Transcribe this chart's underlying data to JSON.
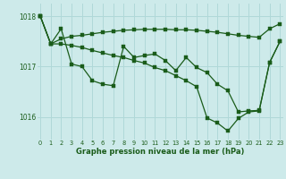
{
  "title": "Graphe pression niveau de la mer (hPa)",
  "background_color": "#cdeaea",
  "grid_color": "#b0d8d8",
  "line_color": "#1a5c1a",
  "x_labels": [
    "0",
    "1",
    "2",
    "3",
    "4",
    "5",
    "6",
    "7",
    "8",
    "9",
    "10",
    "11",
    "12",
    "13",
    "14",
    "15",
    "16",
    "17",
    "18",
    "19",
    "20",
    "21",
    "22",
    "23"
  ],
  "ylim": [
    1015.55,
    1018.25
  ],
  "yticks": [
    1016.0,
    1017.0,
    1018.0
  ],
  "series": {
    "line_smooth": [
      1018.0,
      1017.45,
      1017.55,
      1017.6,
      1017.62,
      1017.65,
      1017.68,
      1017.7,
      1017.72,
      1017.73,
      1017.74,
      1017.74,
      1017.74,
      1017.73,
      1017.73,
      1017.72,
      1017.7,
      1017.68,
      1017.65,
      1017.62,
      1017.6,
      1017.58,
      1017.75,
      1017.85
    ],
    "line_zigzag": [
      1018.0,
      1017.45,
      1017.75,
      1017.05,
      1017.0,
      1016.72,
      1016.65,
      1016.62,
      1017.4,
      1017.18,
      1017.22,
      1017.25,
      1017.12,
      1016.92,
      1017.18,
      1016.98,
      1016.88,
      1016.65,
      1016.52,
      1016.1,
      1016.12,
      1016.13,
      1017.08,
      1017.5
    ],
    "line_down": [
      1018.0,
      1017.45,
      1017.45,
      1017.42,
      1017.38,
      1017.32,
      1017.27,
      1017.22,
      1017.18,
      1017.12,
      1017.07,
      1016.98,
      1016.92,
      1016.82,
      1016.72,
      1016.6,
      1015.98,
      1015.88,
      1015.72,
      1015.97,
      1016.1,
      1016.12,
      1017.08,
      1017.5
    ]
  }
}
